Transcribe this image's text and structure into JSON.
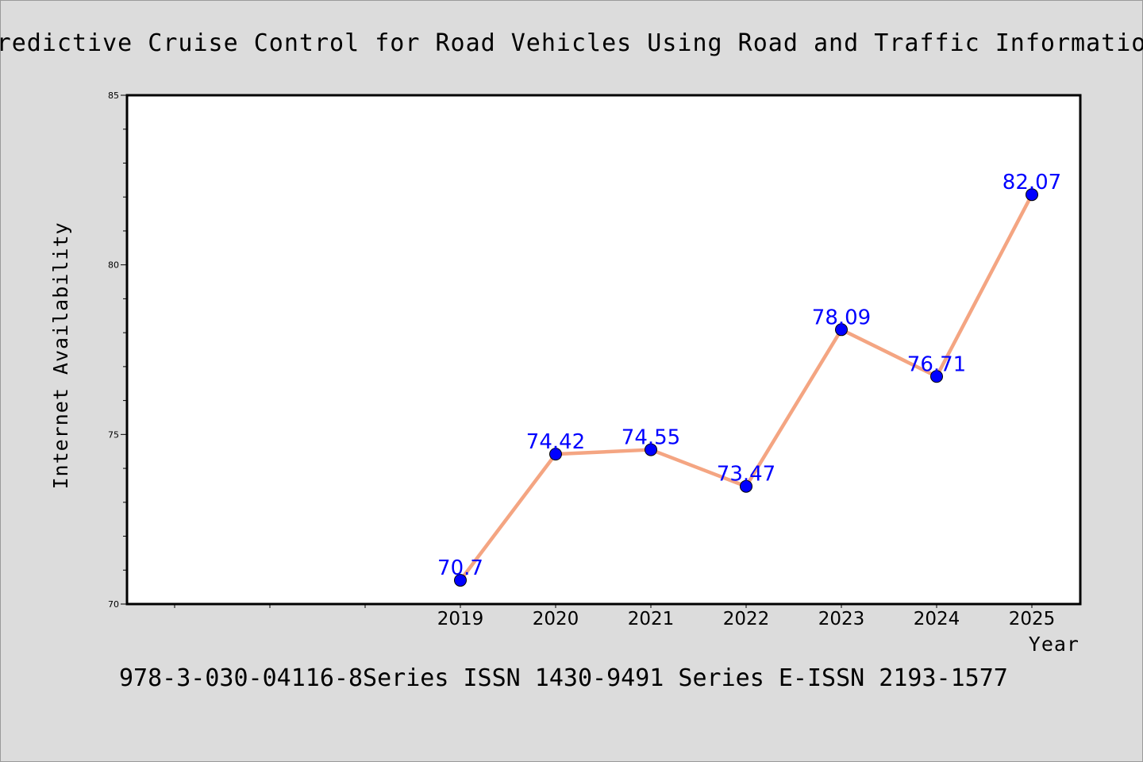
{
  "chart_data": {
    "type": "line",
    "title": "Predictive Cruise Control for Road Vehicles Using Road and Traffic Information",
    "xlabel": "Year",
    "ylabel": "Internet Availability",
    "x": [
      "2019",
      "2020",
      "2021",
      "2022",
      "2023",
      "2024",
      "2025"
    ],
    "values": [
      70.7,
      74.42,
      74.55,
      73.47,
      78.09,
      76.71,
      82.07
    ],
    "data_labels": [
      "70.7",
      "74.42",
      "74.55",
      "73.47",
      "78.09",
      "76.71",
      "82.07"
    ],
    "ylim": [
      70,
      85
    ],
    "yticks": [
      "70",
      "75",
      "80",
      "85"
    ],
    "grid": false,
    "line_color": "#f4a582",
    "marker_color": "#0000ff",
    "label_color": "#0000ff",
    "footer": "978-3-030-04116-8Series ISSN 1430-9491 Series E-ISSN 2193-1577"
  }
}
